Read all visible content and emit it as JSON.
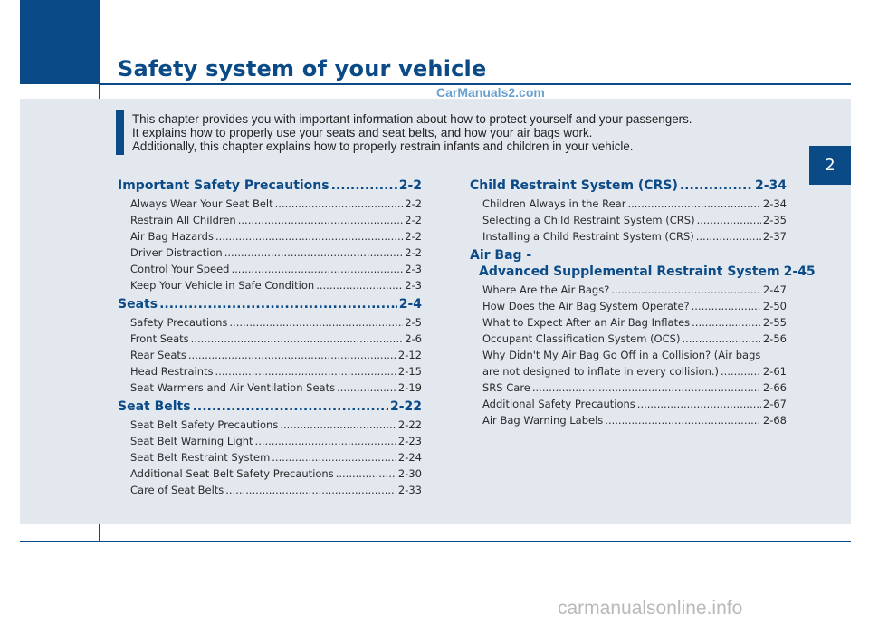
{
  "page_title": "Safety system of your vehicle",
  "watermark_top": "CarManuals2.com",
  "watermark_bottom": "carmanualsonline.info",
  "chapter_tab": "2",
  "intro": [
    "This chapter provides you with important information about how to protect yourself and your passengers.",
    "It explains how to properly use your seats and seat belts, and how your air bags work.",
    "Additionally, this chapter explains how to properly restrain infants and children in your vehicle."
  ],
  "toc_left": [
    {
      "title": "Important Safety Precautions",
      "page": "2-2",
      "items": [
        {
          "label": "Always Wear Your Seat Belt",
          "page": "2-2"
        },
        {
          "label": "Restrain All Children",
          "page": "2-2"
        },
        {
          "label": "Air Bag Hazards",
          "page": "2-2"
        },
        {
          "label": "Driver Distraction",
          "page": "2-2"
        },
        {
          "label": "Control Your Speed",
          "page": "2-3"
        },
        {
          "label": "Keep Your Vehicle in Safe Condition",
          "page": "2-3"
        }
      ]
    },
    {
      "title": "Seats",
      "page": "2-4",
      "items": [
        {
          "label": "Safety Precautions",
          "page": "2-5"
        },
        {
          "label": "Front Seats",
          "page": "2-6"
        },
        {
          "label": "Rear Seats",
          "page": "2-12"
        },
        {
          "label": "Head Restraints",
          "page": "2-15"
        },
        {
          "label": "Seat Warmers and Air Ventilation Seats",
          "page": "2-19"
        }
      ]
    },
    {
      "title": "Seat Belts",
      "page": "2-22",
      "items": [
        {
          "label": "Seat Belt Safety Precautions",
          "page": "2-22"
        },
        {
          "label": "Seat Belt Warning Light",
          "page": "2-23"
        },
        {
          "label": "Seat Belt Restraint System",
          "page": "2-24"
        },
        {
          "label": "Additional Seat Belt Safety Precautions",
          "page": "2-30"
        },
        {
          "label": "Care of Seat Belts",
          "page": "2-33"
        }
      ]
    }
  ],
  "toc_right": {
    "crs": {
      "title": "Child Restraint System (CRS)",
      "page": "2-34",
      "items": [
        {
          "label": "Children Always in the Rear",
          "page": "2-34"
        },
        {
          "label": "Selecting a Child Restraint System (CRS)",
          "page": "2-35"
        },
        {
          "label": "Installing a Child Restraint System (CRS)",
          "page": "2-37"
        }
      ]
    },
    "airbag": {
      "title_line1": "Air Bag -",
      "title_line2": "Advanced Supplemental Restraint System",
      "page": "2-45",
      "items": [
        {
          "label": "Where Are the Air Bags?",
          "page": "2-47"
        },
        {
          "label": "How Does the Air Bag System Operate?",
          "page": "2-50"
        },
        {
          "label": "What to Expect After an Air Bag Inflates",
          "page": "2-55"
        },
        {
          "label": "Occupant Classification System (OCS)",
          "page": "2-56"
        }
      ],
      "wrap_item": {
        "line1": "Why Didn't My Air Bag Go Off in a Collision? (Air bags",
        "line2": "are not designed to inflate in every collision.)",
        "page": "2-61"
      },
      "items_after": [
        {
          "label": "SRS Care",
          "page": "2-66"
        },
        {
          "label": "Additional Safety Precautions",
          "page": "2-67"
        },
        {
          "label": "Air Bag Warning Labels",
          "page": "2-68"
        }
      ]
    }
  }
}
